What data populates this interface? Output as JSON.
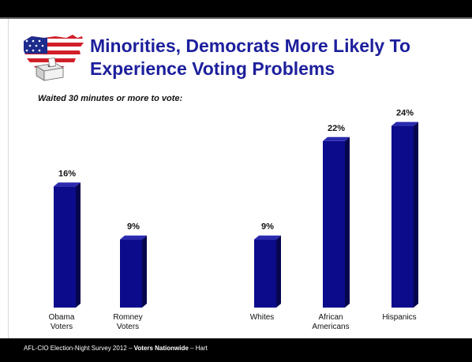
{
  "title_line1": "Minorities, Democrats More Likely To",
  "title_line2": "Experience Voting Problems",
  "subtitle": "Waited 30 minutes or more to vote:",
  "footer": {
    "text": "AFL-CIO Election-Night Survey 2012 – ",
    "emphasis": "Voters Nationwide",
    "suffix": " – Hart"
  },
  "colors": {
    "title": "#1c1f9c",
    "bar_front": "#0b0b8c",
    "bar_side": "#06064f",
    "bar_top": "#2a2ab0"
  },
  "logo_icon": "us-map-ballot-box-icon",
  "chart_data": {
    "type": "bar",
    "title": "Waited 30 minutes or more to vote:",
    "categories": [
      [
        "Obama",
        "Voters"
      ],
      [
        "Romney",
        "Voters"
      ],
      [
        "Whites"
      ],
      [
        "African",
        "Americans"
      ],
      [
        "Hispanics"
      ]
    ],
    "values": [
      16,
      9,
      9,
      22,
      24
    ],
    "value_labels": [
      "16%",
      "9%",
      "9%",
      "22%",
      "24%"
    ],
    "unit": "%",
    "ylim": [
      0,
      24
    ],
    "grid": false,
    "legend": "none"
  }
}
